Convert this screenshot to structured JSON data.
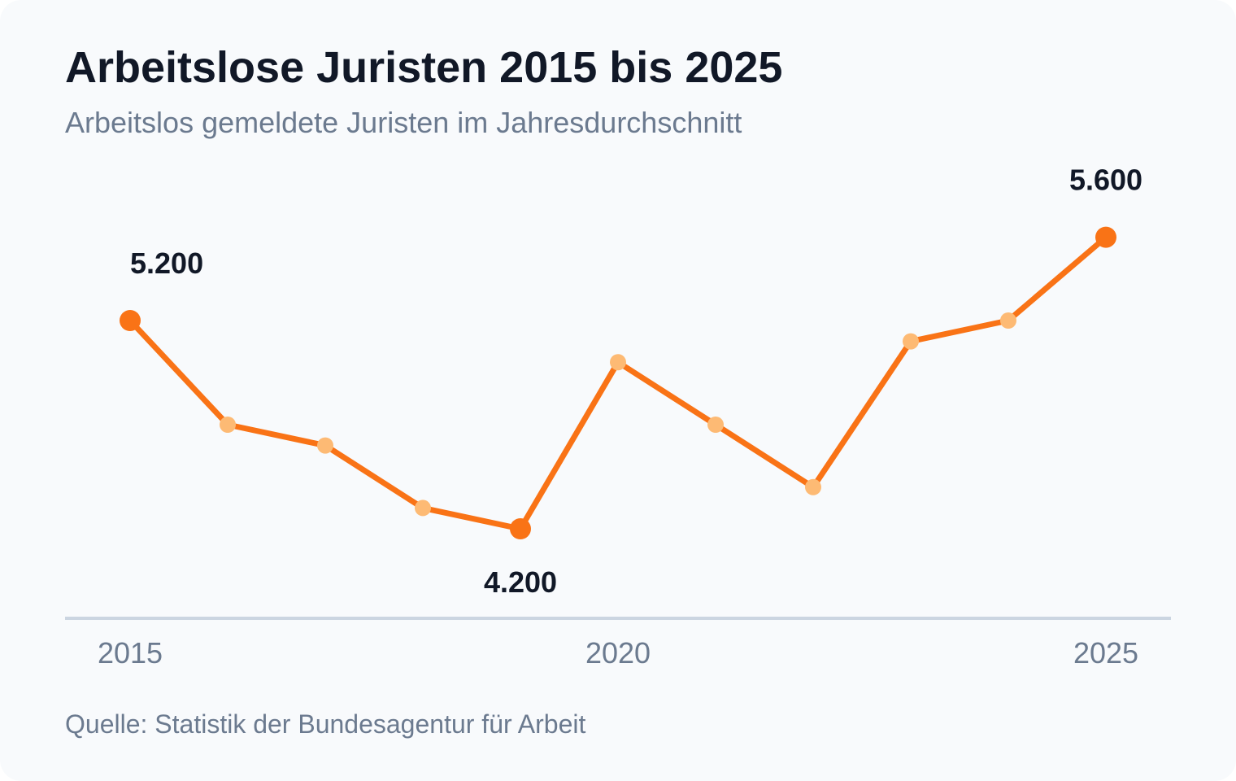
{
  "header": {
    "title": "Arbeitslose Juristen 2015 bis 2025",
    "subtitle": "Arbeitslos gemeldete Juristen im Jahresdurchschnitt"
  },
  "footer": {
    "source": "Quelle: Statistik der Bundesagentur für Arbeit"
  },
  "colors": {
    "background": "#f8fafc",
    "line": "#f97316",
    "highlight_point": "#f97316",
    "regular_point": "#fdba74",
    "axis": "#cbd5e1",
    "title": "#111827",
    "muted_text": "#6b7a8f"
  },
  "chart_data": {
    "type": "line",
    "title": "Arbeitslose Juristen 2015 bis 2025",
    "subtitle": "Arbeitslos gemeldete Juristen im Jahresdurchschnitt",
    "xlabel": "",
    "ylabel": "",
    "x": [
      2015,
      2016,
      2017,
      2018,
      2019,
      2020,
      2021,
      2022,
      2023,
      2024,
      2025
    ],
    "series": [
      {
        "values": [
          5200,
          4700,
          4600,
          4300,
          4200,
          5000,
          4700,
          4400,
          5100,
          5200,
          5600
        ]
      }
    ],
    "ylim": [
      3750,
      6000
    ],
    "x_ticks": [
      2015,
      2020,
      2025
    ],
    "x_tick_labels": [
      "2015",
      "2020",
      "2025"
    ],
    "highlighted": [
      {
        "x": 2015,
        "value": 5200,
        "label": "5.200",
        "label_position": "above"
      },
      {
        "x": 2019,
        "value": 4200,
        "label": "4.200",
        "label_position": "below"
      },
      {
        "x": 2025,
        "value": 5600,
        "label": "5.600",
        "label_position": "above"
      }
    ],
    "grid": false,
    "legend": "none"
  }
}
